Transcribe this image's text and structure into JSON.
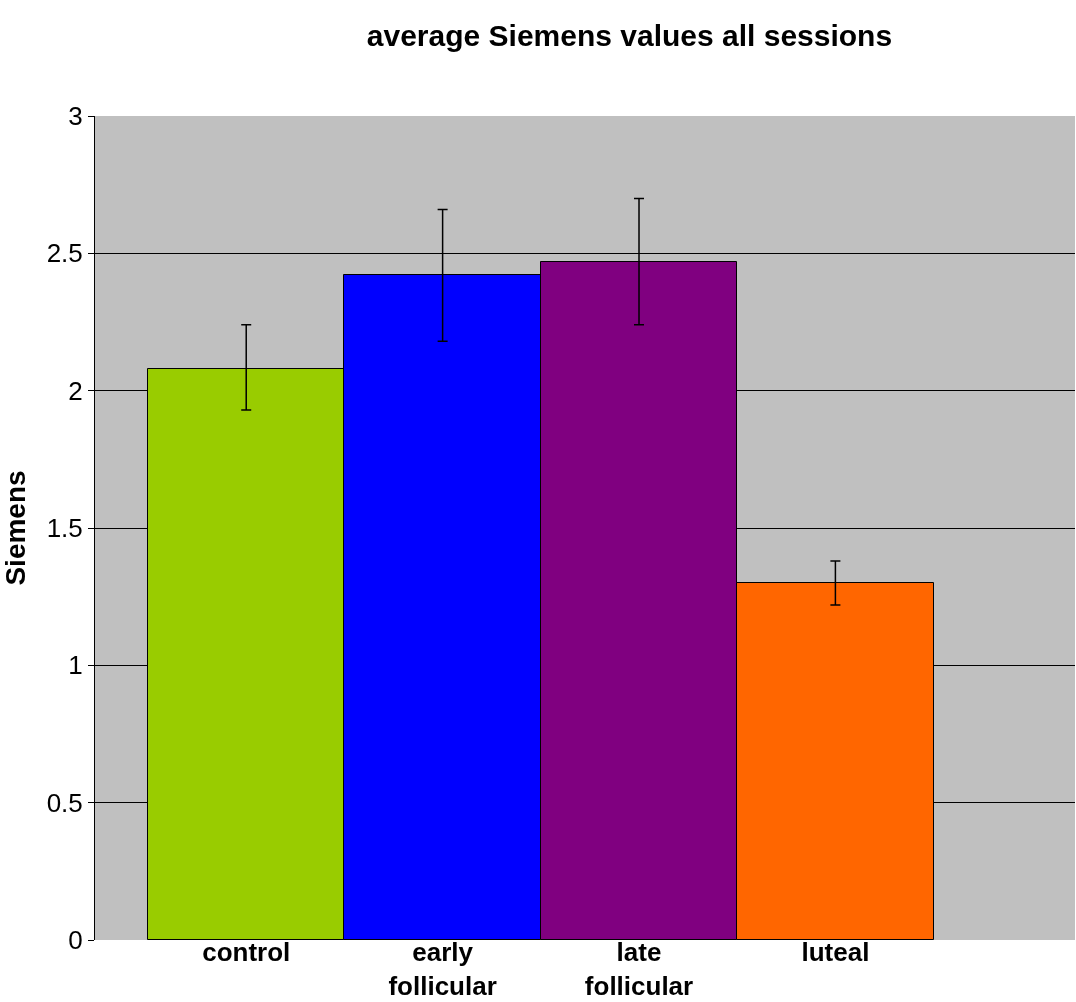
{
  "chart_data": {
    "type": "bar",
    "title": "average Siemens values all sessions",
    "ylabel": "Siemens",
    "categories": [
      "control",
      "early follicular",
      "late follicular",
      "luteal"
    ],
    "values": [
      2.08,
      2.42,
      2.47,
      1.3
    ],
    "colors": [
      "#99cc00",
      "#0000ff",
      "#800080",
      "#ff6600"
    ],
    "errors": [
      [
        1.93,
        2.24
      ],
      [
        2.18,
        2.66
      ],
      [
        2.24,
        2.7
      ],
      [
        1.22,
        1.38
      ]
    ],
    "ylim": [
      0,
      3
    ],
    "yticks": [
      0,
      0.5,
      1,
      1.5,
      2,
      2.5,
      3
    ],
    "grid": "y"
  }
}
